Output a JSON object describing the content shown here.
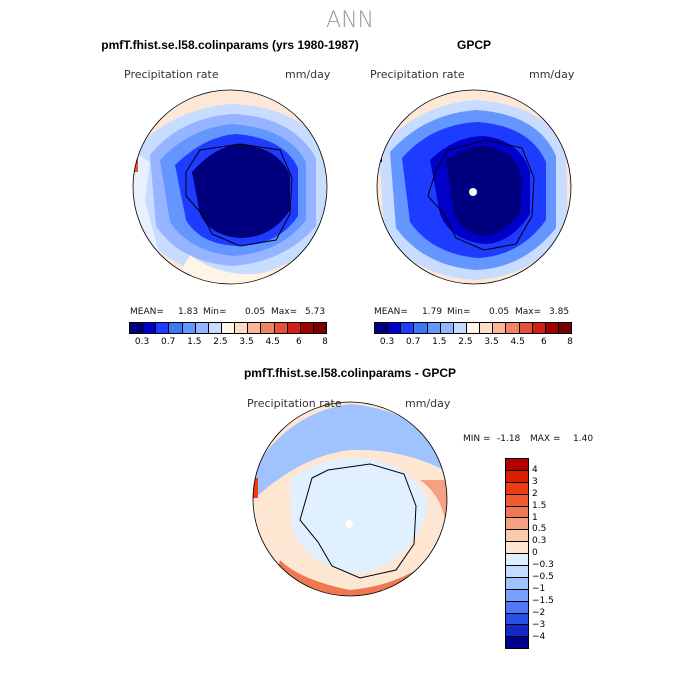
{
  "title": "ANN",
  "panels": {
    "model": {
      "title": "pmfT.fhist.se.l58.colinparams (yrs 1980-1987)",
      "var_label": "Precipitation rate",
      "units": "mm/day",
      "mean_label": "MEAN=",
      "mean": "1.83",
      "min_label": "Min=",
      "min": "0.05",
      "max_label": "Max=",
      "max": "5.73"
    },
    "obs": {
      "title": "GPCP",
      "var_label": "Precipitation rate",
      "units": "mm/day",
      "mean_label": "MEAN=",
      "mean": "1.79",
      "min_label": "Min=",
      "min": "0.05",
      "max_label": "Max=",
      "max": "3.85"
    },
    "diff": {
      "title": "pmfT.fhist.se.l58.colinparams - GPCP",
      "var_label": "Precipitation rate",
      "units": "mm/day",
      "min_label": "MIN =",
      "min": "-1.18",
      "max_label": "MAX =",
      "max": "1.40"
    }
  },
  "chart_data": [
    {
      "type": "heatmap",
      "projection": "south-polar-stereographic",
      "title": "pmfT.fhist.se.l58.colinparams (yrs 1980-1987)",
      "variable": "Precipitation rate",
      "units": "mm/day",
      "stats": {
        "mean": 1.83,
        "min": 0.05,
        "max": 5.73
      }
    },
    {
      "type": "heatmap",
      "projection": "south-polar-stereographic",
      "title": "GPCP",
      "variable": "Precipitation rate",
      "units": "mm/day",
      "stats": {
        "mean": 1.79,
        "min": 0.05,
        "max": 3.85
      }
    },
    {
      "type": "heatmap",
      "projection": "south-polar-stereographic",
      "title": "pmfT.fhist.se.l58.colinparams - GPCP",
      "variable": "Precipitation rate",
      "units": "mm/day",
      "stats": {
        "min": -1.18,
        "max": 1.4
      }
    }
  ],
  "colorbar_abs": {
    "labels": [
      "0.3",
      "0.7",
      "1.5",
      "2.5",
      "3.5",
      "4.5",
      "6",
      "8"
    ],
    "colors": [
      "#00007f",
      "#0000c8",
      "#1e3cff",
      "#3c78f0",
      "#6496ff",
      "#96b4ff",
      "#c8dcff",
      "#fff5e6",
      "#ffdcc8",
      "#ffb496",
      "#f08264",
      "#e6503c",
      "#d21e14",
      "#a00000",
      "#780000"
    ]
  },
  "colorbar_diff": {
    "labels": [
      "4",
      "3",
      "2",
      "1.5",
      "1",
      "0.5",
      "0.3",
      "0",
      "−0.3",
      "−0.5",
      "−1",
      "−1.5",
      "−2",
      "−3",
      "−4"
    ],
    "colors": [
      "#b40000",
      "#dc1e00",
      "#f03c14",
      "#f05a32",
      "#f07850",
      "#f5a082",
      "#fac8aa",
      "#fde6d2",
      "#e1f0ff",
      "#c3dcff",
      "#a0c3ff",
      "#78a0ff",
      "#5078f5",
      "#2850e6",
      "#1428c8",
      "#00008c"
    ]
  }
}
